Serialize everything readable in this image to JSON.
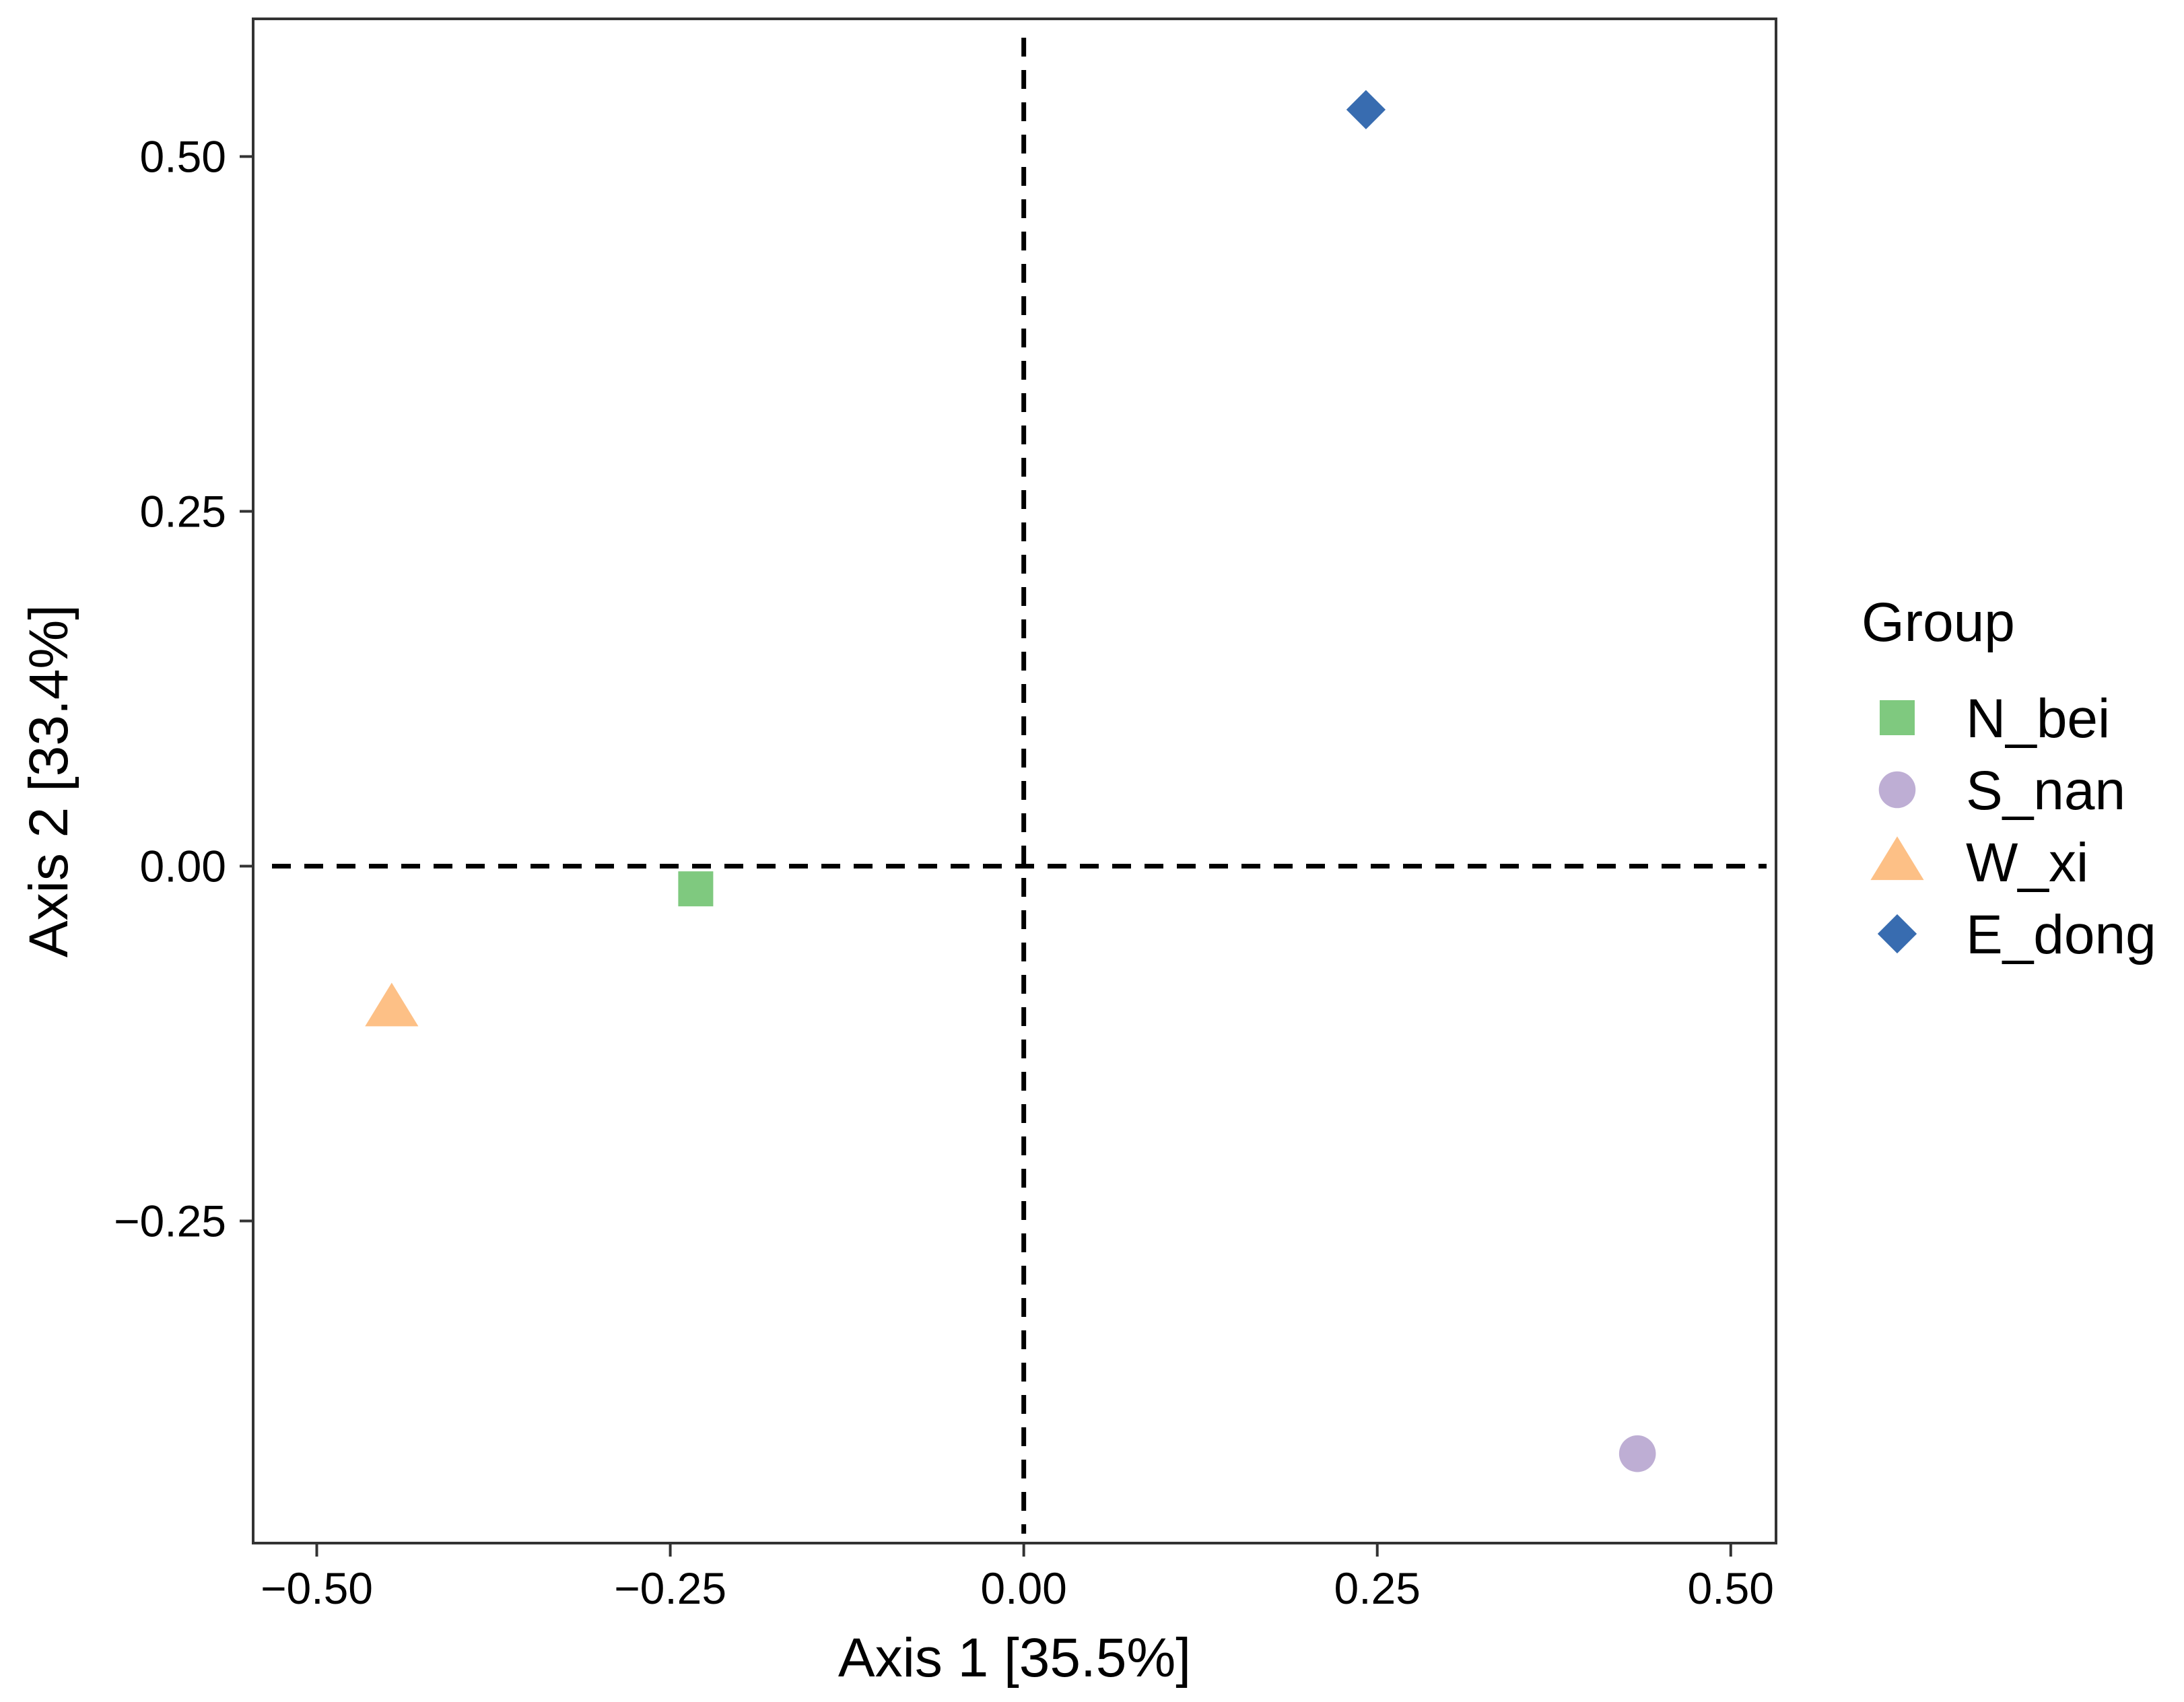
{
  "chart_data": {
    "type": "scatter",
    "title": "",
    "xlabel": "Axis 1 [35.5%]",
    "ylabel": "Axis 2 [33.4%]",
    "xlim": [
      -0.545,
      0.532
    ],
    "ylim": [
      -0.477,
      0.597
    ],
    "xticks": [
      -0.5,
      -0.25,
      0.0,
      0.25,
      0.5
    ],
    "xtick_labels": [
      "−0.50",
      "−0.25",
      "0.00",
      "0.25",
      "0.50"
    ],
    "yticks": [
      -0.25,
      0.0,
      0.25,
      0.5
    ],
    "ytick_labels": [
      "−0.25",
      "0.00",
      "0.25",
      "0.50"
    ],
    "reference_lines": [
      {
        "orientation": "vertical",
        "value": 0.0,
        "style": "dashed"
      },
      {
        "orientation": "horizontal",
        "value": 0.0,
        "style": "dashed"
      }
    ],
    "grid": false,
    "legend_title": "Group",
    "legend_position": "right",
    "series": [
      {
        "name": "N_bei",
        "x": -0.232,
        "y": -0.016,
        "color": "#7fc97f",
        "shape": "square"
      },
      {
        "name": "S_nan",
        "x": 0.434,
        "y": -0.414,
        "color": "#beaed4",
        "shape": "circle"
      },
      {
        "name": "W_xi",
        "x": -0.447,
        "y": -0.1,
        "color": "#fdc086",
        "shape": "triangle"
      },
      {
        "name": "E_dong",
        "x": 0.242,
        "y": 0.533,
        "color": "#386cb0",
        "shape": "diamond"
      }
    ]
  }
}
